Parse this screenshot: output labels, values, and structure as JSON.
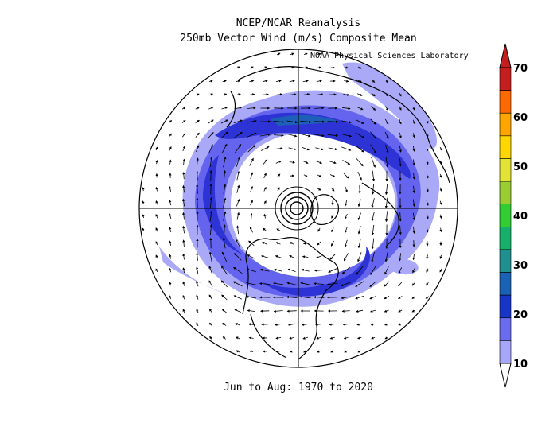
{
  "title_line1": "NCEP/NCAR Reanalysis",
  "title_line2": "250mb Vector Wind (m/s) Composite Mean",
  "credit": "NOAA Physical Sciences Laboratory",
  "subtitle": "Jun to Aug: 1970 to 2020",
  "colorbar": {
    "labels": [
      "70",
      "60",
      "50",
      "40",
      "30",
      "20",
      "10"
    ],
    "colors": [
      "#c41e1e",
      "#ff6a00",
      "#ffa500",
      "#ffd700",
      "#e3e336",
      "#9acd32",
      "#32cd32",
      "#16b06b",
      "#1f8f8f",
      "#1a62b4",
      "#1736c8",
      "#6b6bef",
      "#a7a7fa"
    ],
    "extend": "both"
  },
  "map": {
    "projection": "north-polar-stereographic",
    "shading_colors": {
      "10-15": "#a9a9f8",
      "15-20": "#6464ee",
      "20-25": "#2d33d4",
      "25-30": "#1e5fb8"
    }
  }
}
